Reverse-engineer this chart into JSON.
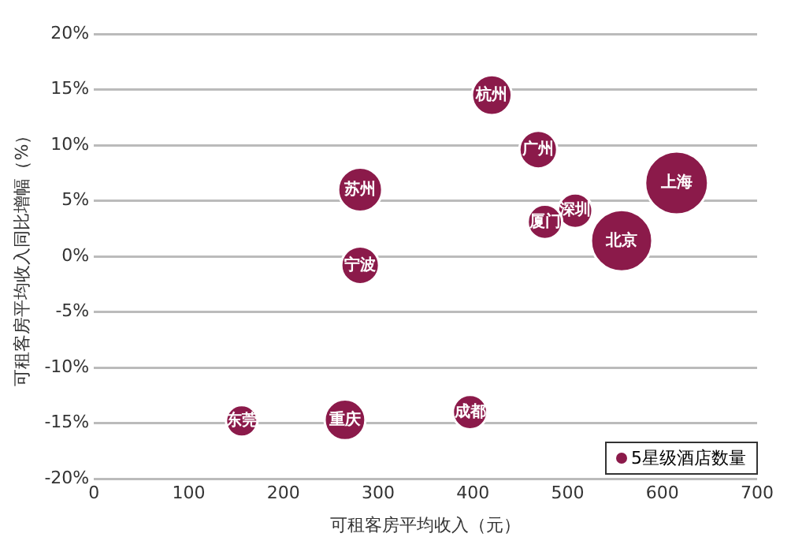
{
  "chart_data": {
    "type": "bubble",
    "xlabel": "可租客房平均收入（元）",
    "ylabel": "可租客房平均收入同比增幅（%）",
    "x": [
      420,
      469,
      281,
      281,
      615,
      508,
      476,
      557,
      156,
      265,
      397
    ],
    "series": [
      {
        "name": "5星级酒店数量",
        "color": "#8b1a4a",
        "values": [
          14.5,
          9.6,
          6.0,
          -0.8,
          6.6,
          4.1,
          3.1,
          1.4,
          -14.8,
          -14.7,
          -14.0
        ],
        "sizes": [
          0.4,
          0.36,
          0.49,
          0.36,
          1,
          0.3,
          0.3,
          0.95,
          0.25,
          0.42,
          0.3
        ]
      }
    ],
    "annotations": [
      {
        "text": "杭州",
        "x": 420,
        "y": 14.5
      },
      {
        "text": "广州",
        "x": 469,
        "y": 9.6
      },
      {
        "text": "苏州",
        "x": 281,
        "y": 6.0
      },
      {
        "text": "宁波",
        "x": 281,
        "y": -0.8
      },
      {
        "text": "上海",
        "x": 615,
        "y": 6.6
      },
      {
        "text": "深圳",
        "x": 508,
        "y": 4.1
      },
      {
        "text": "厦门",
        "x": 476,
        "y": 3.1
      },
      {
        "text": "北京",
        "x": 557,
        "y": 1.4
      },
      {
        "text": "东莞",
        "x": 156,
        "y": -14.8
      },
      {
        "text": "重庆",
        "x": 265,
        "y": -14.7
      },
      {
        "text": "成都",
        "x": 397,
        "y": -14.0
      }
    ],
    "xlim": [
      0,
      700
    ],
    "xticks": [
      0,
      100,
      200,
      300,
      400,
      500,
      600,
      700
    ],
    "ylim": [
      -20,
      20
    ],
    "yticks": [
      {
        "value": -20,
        "label": "-20%"
      },
      {
        "value": -15,
        "label": "-15%"
      },
      {
        "value": -10,
        "label": "-10%"
      },
      {
        "value": -5,
        "label": "-5%"
      },
      {
        "value": 0,
        "label": "0%"
      },
      {
        "value": 5,
        "label": "5%"
      },
      {
        "value": 10,
        "label": "10%"
      },
      {
        "value": 15,
        "label": "15%"
      },
      {
        "value": 20,
        "label": "20%"
      }
    ],
    "grid": "y",
    "legend": "bottom right"
  }
}
